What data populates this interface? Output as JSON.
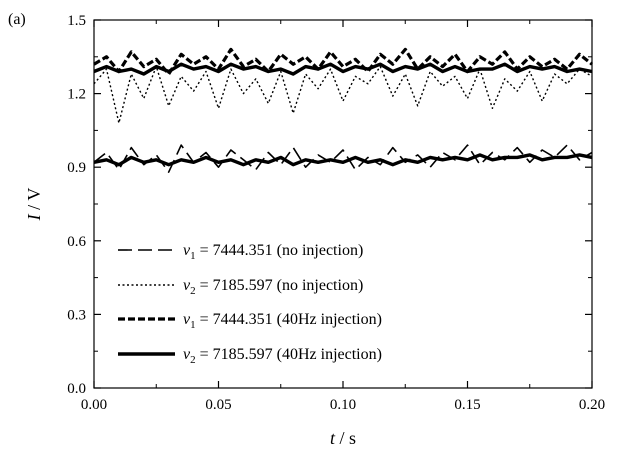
{
  "panel_label": "(a)",
  "chart_data": {
    "type": "line",
    "title": "",
    "xlabel": "t / s",
    "ylabel": "I / V",
    "xlim": [
      0.0,
      0.2
    ],
    "ylim": [
      0.0,
      1.5
    ],
    "x_ticks": [
      0.0,
      0.05,
      0.1,
      0.15,
      0.2
    ],
    "x_tick_labels": [
      "0.00",
      "0.05",
      "0.10",
      "0.15",
      "0.20"
    ],
    "y_ticks": [
      0.0,
      0.3,
      0.6,
      0.9,
      1.2,
      1.5
    ],
    "y_tick_labels": [
      "0.0",
      "0.3",
      "0.6",
      "0.9",
      "1.2",
      "1.5"
    ],
    "grid": false,
    "legend_position": "lower-left",
    "x_units": "s",
    "series": [
      {
        "name": "v1 = 7444.351 (no injection)",
        "legend": {
          "sym": "v",
          "sub": "1",
          "rest": " = 7444.351 (no injection)"
        },
        "style": "long-dash",
        "x": [
          0.0,
          0.005,
          0.01,
          0.015,
          0.02,
          0.025,
          0.03,
          0.035,
          0.04,
          0.045,
          0.05,
          0.055,
          0.06,
          0.065,
          0.07,
          0.075,
          0.08,
          0.085,
          0.09,
          0.095,
          0.1,
          0.105,
          0.11,
          0.115,
          0.12,
          0.125,
          0.13,
          0.135,
          0.14,
          0.145,
          0.15,
          0.155,
          0.16,
          0.165,
          0.17,
          0.175,
          0.18,
          0.185,
          0.19,
          0.195,
          0.2
        ],
        "y": [
          0.92,
          0.96,
          0.89,
          0.98,
          0.91,
          0.95,
          0.88,
          0.99,
          0.92,
          0.96,
          0.9,
          0.97,
          0.93,
          0.89,
          0.96,
          0.91,
          0.98,
          0.9,
          0.95,
          0.92,
          0.97,
          0.89,
          0.94,
          0.91,
          0.98,
          0.92,
          0.95,
          0.9,
          0.96,
          0.93,
          0.99,
          0.91,
          0.96,
          0.93,
          0.98,
          0.92,
          0.97,
          0.94,
          0.99,
          0.93,
          0.96
        ]
      },
      {
        "name": "v2 = 7185.597 (no injection)",
        "legend": {
          "sym": "v",
          "sub": "2",
          "rest": " = 7185.597 (no injection)"
        },
        "style": "dotted",
        "x": [
          0.0,
          0.005,
          0.01,
          0.015,
          0.02,
          0.025,
          0.03,
          0.035,
          0.04,
          0.045,
          0.05,
          0.055,
          0.06,
          0.065,
          0.07,
          0.075,
          0.08,
          0.085,
          0.09,
          0.095,
          0.1,
          0.105,
          0.11,
          0.115,
          0.12,
          0.125,
          0.13,
          0.135,
          0.14,
          0.145,
          0.15,
          0.155,
          0.16,
          0.165,
          0.17,
          0.175,
          0.18,
          0.185,
          0.19,
          0.195,
          0.2
        ],
        "y": [
          1.24,
          1.3,
          1.08,
          1.28,
          1.18,
          1.31,
          1.15,
          1.27,
          1.21,
          1.29,
          1.14,
          1.3,
          1.2,
          1.26,
          1.16,
          1.29,
          1.12,
          1.28,
          1.22,
          1.3,
          1.17,
          1.27,
          1.24,
          1.31,
          1.19,
          1.28,
          1.15,
          1.29,
          1.23,
          1.27,
          1.18,
          1.3,
          1.14,
          1.26,
          1.21,
          1.29,
          1.17,
          1.28,
          1.24,
          1.3,
          1.27
        ]
      },
      {
        "name": "v1 = 7444.351 (40Hz injection)",
        "legend": {
          "sym": "v",
          "sub": "1",
          "rest": " = 7444.351 (40Hz injection)"
        },
        "style": "thick-dash",
        "x": [
          0.0,
          0.005,
          0.01,
          0.015,
          0.02,
          0.025,
          0.03,
          0.035,
          0.04,
          0.045,
          0.05,
          0.055,
          0.06,
          0.065,
          0.07,
          0.075,
          0.08,
          0.085,
          0.09,
          0.095,
          0.1,
          0.105,
          0.11,
          0.115,
          0.12,
          0.125,
          0.13,
          0.135,
          0.14,
          0.145,
          0.15,
          0.155,
          0.16,
          0.165,
          0.17,
          0.175,
          0.18,
          0.185,
          0.19,
          0.195,
          0.2
        ],
        "y": [
          1.32,
          1.35,
          1.29,
          1.37,
          1.31,
          1.34,
          1.28,
          1.36,
          1.32,
          1.35,
          1.3,
          1.38,
          1.31,
          1.34,
          1.29,
          1.36,
          1.32,
          1.35,
          1.3,
          1.37,
          1.31,
          1.34,
          1.29,
          1.36,
          1.32,
          1.38,
          1.3,
          1.35,
          1.31,
          1.36,
          1.29,
          1.35,
          1.32,
          1.37,
          1.3,
          1.35,
          1.31,
          1.34,
          1.3,
          1.36,
          1.32
        ]
      },
      {
        "name": "v2 = 7185.597 (40Hz injection)",
        "legend": {
          "sym": "v",
          "sub": "2",
          "rest": " = 7185.597 (40Hz injection)"
        },
        "style": "solid-thick",
        "x": [
          0.0,
          0.005,
          0.01,
          0.015,
          0.02,
          0.025,
          0.03,
          0.035,
          0.04,
          0.045,
          0.05,
          0.055,
          0.06,
          0.065,
          0.07,
          0.075,
          0.08,
          0.085,
          0.09,
          0.095,
          0.1,
          0.105,
          0.11,
          0.115,
          0.12,
          0.125,
          0.13,
          0.135,
          0.14,
          0.145,
          0.15,
          0.155,
          0.16,
          0.165,
          0.17,
          0.175,
          0.18,
          0.185,
          0.19,
          0.195,
          0.2
        ],
        "y": [
          0.92,
          0.93,
          0.91,
          0.94,
          0.92,
          0.93,
          0.91,
          0.93,
          0.92,
          0.94,
          0.92,
          0.93,
          0.91,
          0.93,
          0.92,
          0.94,
          0.91,
          0.93,
          0.92,
          0.93,
          0.92,
          0.94,
          0.92,
          0.93,
          0.91,
          0.93,
          0.92,
          0.94,
          0.93,
          0.94,
          0.93,
          0.95,
          0.93,
          0.94,
          0.94,
          0.95,
          0.93,
          0.94,
          0.94,
          0.95,
          0.94
        ]
      },
      {
        "name": "v2 = 7185.597 (40Hz injection), upper trace",
        "legend": null,
        "style": "solid-thick",
        "x": [
          0.0,
          0.005,
          0.01,
          0.015,
          0.02,
          0.025,
          0.03,
          0.035,
          0.04,
          0.045,
          0.05,
          0.055,
          0.06,
          0.065,
          0.07,
          0.075,
          0.08,
          0.085,
          0.09,
          0.095,
          0.1,
          0.105,
          0.11,
          0.115,
          0.12,
          0.125,
          0.13,
          0.135,
          0.14,
          0.145,
          0.15,
          0.155,
          0.16,
          0.165,
          0.17,
          0.175,
          0.18,
          0.185,
          0.19,
          0.195,
          0.2
        ],
        "y": [
          1.29,
          1.31,
          1.29,
          1.3,
          1.28,
          1.31,
          1.29,
          1.32,
          1.3,
          1.31,
          1.29,
          1.32,
          1.3,
          1.31,
          1.29,
          1.3,
          1.28,
          1.31,
          1.3,
          1.32,
          1.29,
          1.31,
          1.3,
          1.32,
          1.29,
          1.31,
          1.3,
          1.32,
          1.29,
          1.31,
          1.29,
          1.3,
          1.3,
          1.32,
          1.29,
          1.31,
          1.3,
          1.31,
          1.29,
          1.3,
          1.29
        ]
      }
    ]
  }
}
